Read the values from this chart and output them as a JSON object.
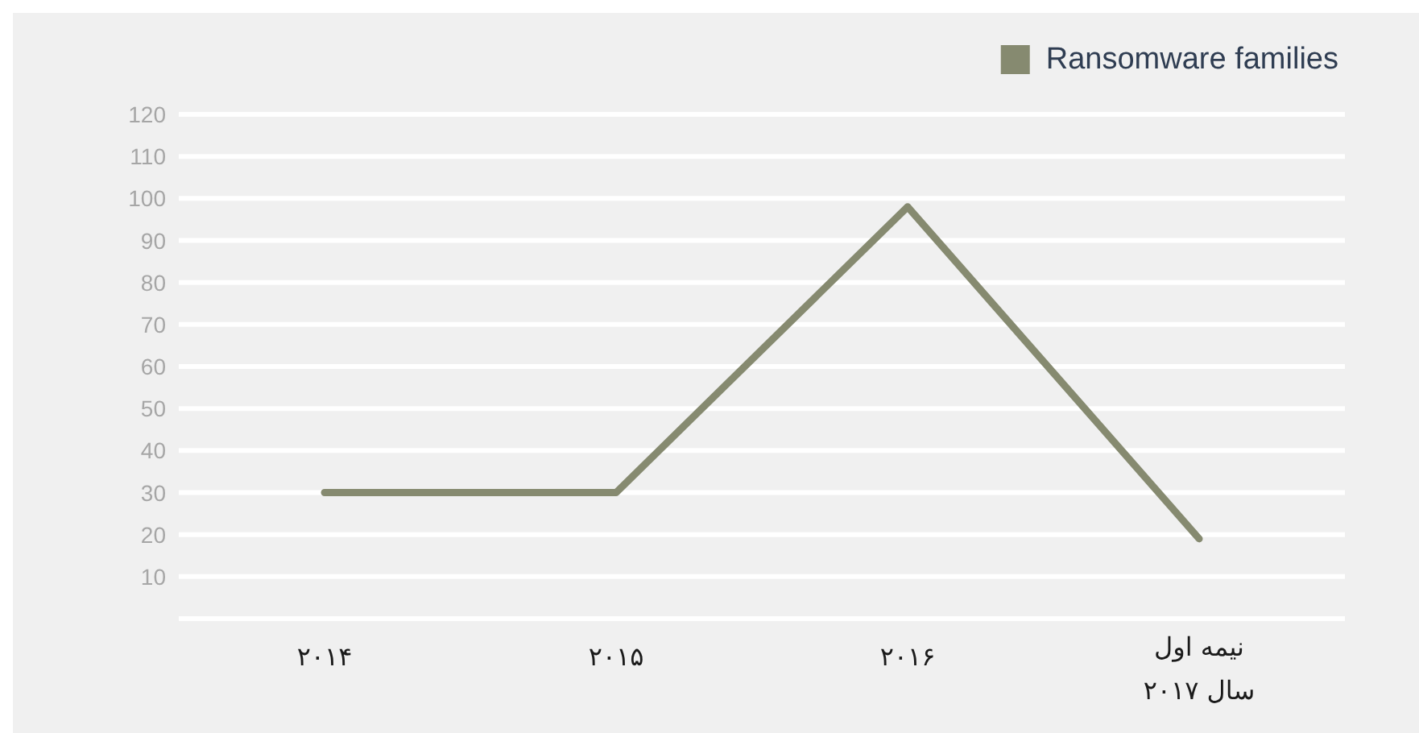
{
  "chart_data": {
    "type": "line",
    "categories": [
      "۲۰۱۴",
      "۲۰۱۵",
      "۲۰۱۶",
      "نیمه اول سال ۲۰۱۷"
    ],
    "series": [
      {
        "name": "Ransomware families",
        "color": "#868a70",
        "values": [
          30,
          30,
          98,
          19
        ]
      }
    ],
    "ylim": [
      0,
      120
    ],
    "yticks": [
      {
        "value": 0,
        "label": null
      },
      10,
      20,
      30,
      40,
      50,
      60,
      70,
      80,
      90,
      100,
      110,
      120
    ],
    "grid": "y",
    "legend": "top right"
  }
}
